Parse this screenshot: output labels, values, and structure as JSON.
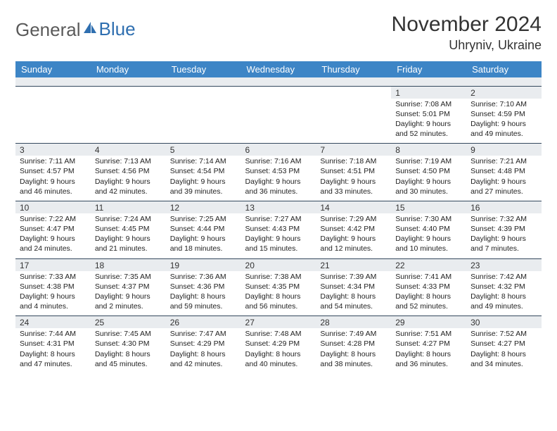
{
  "brand": {
    "word1": "General",
    "word2": "Blue",
    "word1_color": "#5a5a5a",
    "word2_color": "#2f6fb0"
  },
  "title": "November 2024",
  "location": "Uhryniv, Ukraine",
  "accent_color": "#3d85c6",
  "header_text_color": "#ffffff",
  "daynum_bg": "#e9ecef",
  "border_color": "#34495e",
  "day_headers": [
    "Sunday",
    "Monday",
    "Tuesday",
    "Wednesday",
    "Thursday",
    "Friday",
    "Saturday"
  ],
  "weeks": [
    {
      "cells": [
        null,
        null,
        null,
        null,
        null,
        {
          "n": "1",
          "sunrise": "Sunrise: 7:08 AM",
          "sunset": "Sunset: 5:01 PM",
          "day1": "Daylight: 9 hours",
          "day2": "and 52 minutes."
        },
        {
          "n": "2",
          "sunrise": "Sunrise: 7:10 AM",
          "sunset": "Sunset: 4:59 PM",
          "day1": "Daylight: 9 hours",
          "day2": "and 49 minutes."
        }
      ]
    },
    {
      "cells": [
        {
          "n": "3",
          "sunrise": "Sunrise: 7:11 AM",
          "sunset": "Sunset: 4:57 PM",
          "day1": "Daylight: 9 hours",
          "day2": "and 46 minutes."
        },
        {
          "n": "4",
          "sunrise": "Sunrise: 7:13 AM",
          "sunset": "Sunset: 4:56 PM",
          "day1": "Daylight: 9 hours",
          "day2": "and 42 minutes."
        },
        {
          "n": "5",
          "sunrise": "Sunrise: 7:14 AM",
          "sunset": "Sunset: 4:54 PM",
          "day1": "Daylight: 9 hours",
          "day2": "and 39 minutes."
        },
        {
          "n": "6",
          "sunrise": "Sunrise: 7:16 AM",
          "sunset": "Sunset: 4:53 PM",
          "day1": "Daylight: 9 hours",
          "day2": "and 36 minutes."
        },
        {
          "n": "7",
          "sunrise": "Sunrise: 7:18 AM",
          "sunset": "Sunset: 4:51 PM",
          "day1": "Daylight: 9 hours",
          "day2": "and 33 minutes."
        },
        {
          "n": "8",
          "sunrise": "Sunrise: 7:19 AM",
          "sunset": "Sunset: 4:50 PM",
          "day1": "Daylight: 9 hours",
          "day2": "and 30 minutes."
        },
        {
          "n": "9",
          "sunrise": "Sunrise: 7:21 AM",
          "sunset": "Sunset: 4:48 PM",
          "day1": "Daylight: 9 hours",
          "day2": "and 27 minutes."
        }
      ]
    },
    {
      "cells": [
        {
          "n": "10",
          "sunrise": "Sunrise: 7:22 AM",
          "sunset": "Sunset: 4:47 PM",
          "day1": "Daylight: 9 hours",
          "day2": "and 24 minutes."
        },
        {
          "n": "11",
          "sunrise": "Sunrise: 7:24 AM",
          "sunset": "Sunset: 4:45 PM",
          "day1": "Daylight: 9 hours",
          "day2": "and 21 minutes."
        },
        {
          "n": "12",
          "sunrise": "Sunrise: 7:25 AM",
          "sunset": "Sunset: 4:44 PM",
          "day1": "Daylight: 9 hours",
          "day2": "and 18 minutes."
        },
        {
          "n": "13",
          "sunrise": "Sunrise: 7:27 AM",
          "sunset": "Sunset: 4:43 PM",
          "day1": "Daylight: 9 hours",
          "day2": "and 15 minutes."
        },
        {
          "n": "14",
          "sunrise": "Sunrise: 7:29 AM",
          "sunset": "Sunset: 4:42 PM",
          "day1": "Daylight: 9 hours",
          "day2": "and 12 minutes."
        },
        {
          "n": "15",
          "sunrise": "Sunrise: 7:30 AM",
          "sunset": "Sunset: 4:40 PM",
          "day1": "Daylight: 9 hours",
          "day2": "and 10 minutes."
        },
        {
          "n": "16",
          "sunrise": "Sunrise: 7:32 AM",
          "sunset": "Sunset: 4:39 PM",
          "day1": "Daylight: 9 hours",
          "day2": "and 7 minutes."
        }
      ]
    },
    {
      "cells": [
        {
          "n": "17",
          "sunrise": "Sunrise: 7:33 AM",
          "sunset": "Sunset: 4:38 PM",
          "day1": "Daylight: 9 hours",
          "day2": "and 4 minutes."
        },
        {
          "n": "18",
          "sunrise": "Sunrise: 7:35 AM",
          "sunset": "Sunset: 4:37 PM",
          "day1": "Daylight: 9 hours",
          "day2": "and 2 minutes."
        },
        {
          "n": "19",
          "sunrise": "Sunrise: 7:36 AM",
          "sunset": "Sunset: 4:36 PM",
          "day1": "Daylight: 8 hours",
          "day2": "and 59 minutes."
        },
        {
          "n": "20",
          "sunrise": "Sunrise: 7:38 AM",
          "sunset": "Sunset: 4:35 PM",
          "day1": "Daylight: 8 hours",
          "day2": "and 56 minutes."
        },
        {
          "n": "21",
          "sunrise": "Sunrise: 7:39 AM",
          "sunset": "Sunset: 4:34 PM",
          "day1": "Daylight: 8 hours",
          "day2": "and 54 minutes."
        },
        {
          "n": "22",
          "sunrise": "Sunrise: 7:41 AM",
          "sunset": "Sunset: 4:33 PM",
          "day1": "Daylight: 8 hours",
          "day2": "and 52 minutes."
        },
        {
          "n": "23",
          "sunrise": "Sunrise: 7:42 AM",
          "sunset": "Sunset: 4:32 PM",
          "day1": "Daylight: 8 hours",
          "day2": "and 49 minutes."
        }
      ]
    },
    {
      "cells": [
        {
          "n": "24",
          "sunrise": "Sunrise: 7:44 AM",
          "sunset": "Sunset: 4:31 PM",
          "day1": "Daylight: 8 hours",
          "day2": "and 47 minutes."
        },
        {
          "n": "25",
          "sunrise": "Sunrise: 7:45 AM",
          "sunset": "Sunset: 4:30 PM",
          "day1": "Daylight: 8 hours",
          "day2": "and 45 minutes."
        },
        {
          "n": "26",
          "sunrise": "Sunrise: 7:47 AM",
          "sunset": "Sunset: 4:29 PM",
          "day1": "Daylight: 8 hours",
          "day2": "and 42 minutes."
        },
        {
          "n": "27",
          "sunrise": "Sunrise: 7:48 AM",
          "sunset": "Sunset: 4:29 PM",
          "day1": "Daylight: 8 hours",
          "day2": "and 40 minutes."
        },
        {
          "n": "28",
          "sunrise": "Sunrise: 7:49 AM",
          "sunset": "Sunset: 4:28 PM",
          "day1": "Daylight: 8 hours",
          "day2": "and 38 minutes."
        },
        {
          "n": "29",
          "sunrise": "Sunrise: 7:51 AM",
          "sunset": "Sunset: 4:27 PM",
          "day1": "Daylight: 8 hours",
          "day2": "and 36 minutes."
        },
        {
          "n": "30",
          "sunrise": "Sunrise: 7:52 AM",
          "sunset": "Sunset: 4:27 PM",
          "day1": "Daylight: 8 hours",
          "day2": "and 34 minutes."
        }
      ]
    }
  ]
}
